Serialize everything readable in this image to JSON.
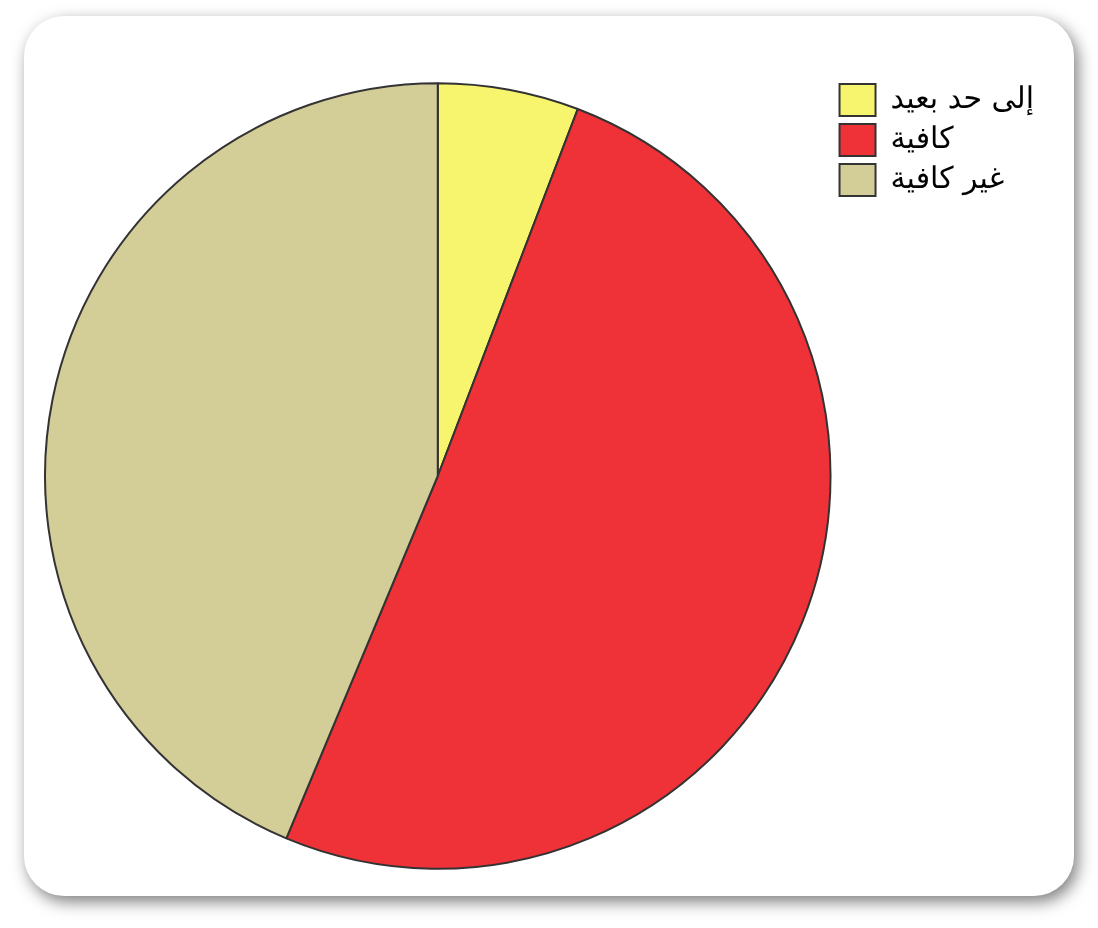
{
  "chart_data": {
    "type": "pie",
    "categories": [
      "إلى حد بعيد",
      "كافية",
      "غير كافية"
    ],
    "values": [
      5.8,
      50.5,
      43.7
    ],
    "colors": [
      "#f7f56e",
      "#ee3237",
      "#d3cd98"
    ],
    "legend": "top right"
  }
}
